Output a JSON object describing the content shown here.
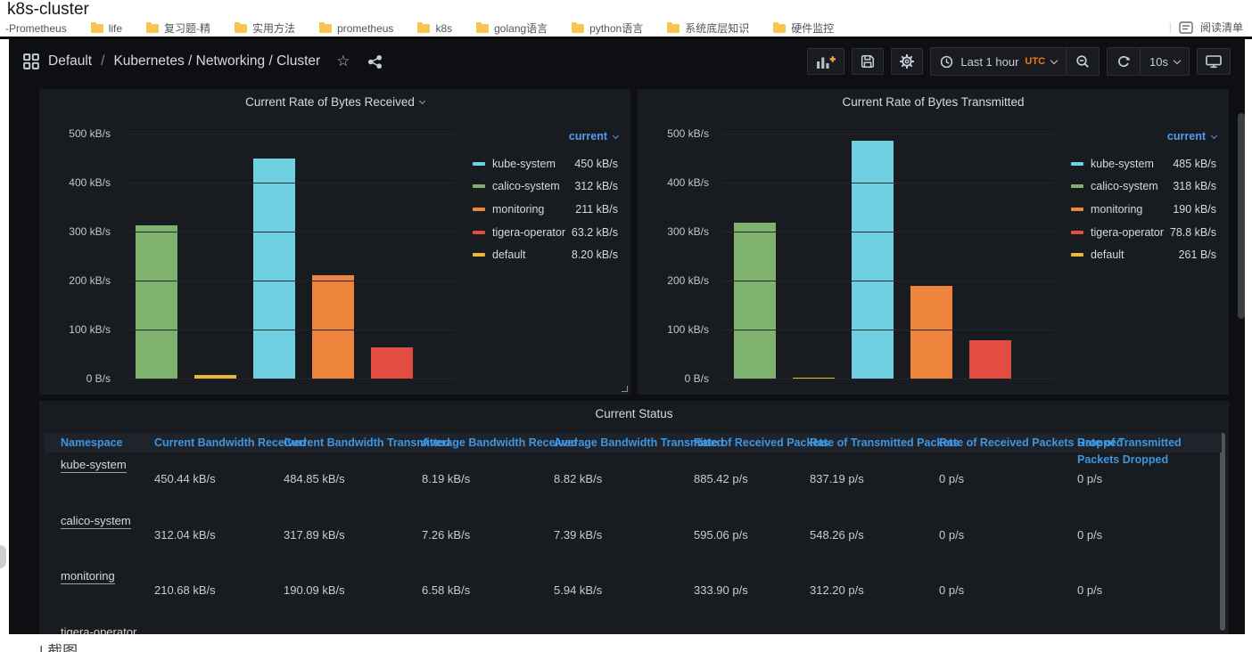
{
  "browser": {
    "page_title": "k8s-cluster",
    "bookmarks": [
      {
        "label": "-Prometheus",
        "folder": false
      },
      {
        "label": "life",
        "folder": true
      },
      {
        "label": "复习题-精",
        "folder": true
      },
      {
        "label": "实用方法",
        "folder": true
      },
      {
        "label": "prometheus",
        "folder": true
      },
      {
        "label": "k8s",
        "folder": true
      },
      {
        "label": "golang语言",
        "folder": true
      },
      {
        "label": "python语言",
        "folder": true
      },
      {
        "label": "系统底层知识",
        "folder": true
      },
      {
        "label": "硬件监控",
        "folder": true
      }
    ],
    "reading_list_label": "阅读清单",
    "bottom_note": "| 截图"
  },
  "nav": {
    "breadcrumb_folder": "Default",
    "breadcrumb_separator": "/",
    "breadcrumb_dashboard": "Kubernetes / Networking / Cluster",
    "star_glyph": "☆",
    "time_range": "Last 1 hour",
    "timezone": "UTC",
    "refresh_interval": "10s"
  },
  "icons": {
    "apps": "grid-2x2",
    "share": "share-alt",
    "add_panel": "bar-chart-plus",
    "save": "floppy-disk",
    "settings": "gear",
    "time_picker": "clock",
    "zoom_out": "magnifier-minus",
    "refresh": "circular-arrow",
    "cycle_view": "monitor",
    "reading_list": "list-box",
    "bookmark_folder": "folder"
  },
  "colors": {
    "kube_system": "#6ED0E0",
    "calico_system": "#7EB26D",
    "monitoring": "#EF843C",
    "tigera_operator": "#E24D42",
    "default_ns": "#EAB839",
    "legend_header_blue": "#4f9ef0",
    "table_header_blue": "#3e96e0",
    "utc_orange": "#eb7b18",
    "panel_bg": "#181b1f"
  },
  "chart_data": [
    {
      "type": "bar",
      "title": "Current Rate of Bytes Received",
      "legend_header": "current",
      "ylim_kbps": 500,
      "y_ticks": [
        "500 kB/s",
        "400 kB/s",
        "300 kB/s",
        "200 kB/s",
        "100 kB/s",
        "0 B/s"
      ],
      "grid": true,
      "legend_position": "right",
      "bar_order": [
        "calico-system",
        "default",
        "kube-system",
        "monitoring",
        "tigera-operator"
      ],
      "series": [
        {
          "name": "kube-system",
          "color": "#6ED0E0",
          "value_kbps": 450,
          "display": "450 kB/s"
        },
        {
          "name": "calico-system",
          "color": "#7EB26D",
          "value_kbps": 312,
          "display": "312 kB/s"
        },
        {
          "name": "monitoring",
          "color": "#EF843C",
          "value_kbps": 211,
          "display": "211 kB/s"
        },
        {
          "name": "tigera-operator",
          "color": "#E24D42",
          "value_kbps": 63.2,
          "display": "63.2 kB/s"
        },
        {
          "name": "default",
          "color": "#EAB839",
          "value_kbps": 8.2,
          "display": "8.20 kB/s"
        }
      ]
    },
    {
      "type": "bar",
      "title": "Current Rate of Bytes Transmitted",
      "legend_header": "current",
      "ylim_kbps": 500,
      "y_ticks": [
        "500 kB/s",
        "400 kB/s",
        "300 kB/s",
        "200 kB/s",
        "100 kB/s",
        "0 B/s"
      ],
      "grid": true,
      "legend_position": "right",
      "bar_order": [
        "calico-system",
        "default",
        "kube-system",
        "monitoring",
        "tigera-operator"
      ],
      "series": [
        {
          "name": "kube-system",
          "color": "#6ED0E0",
          "value_kbps": 485,
          "display": "485 kB/s"
        },
        {
          "name": "calico-system",
          "color": "#7EB26D",
          "value_kbps": 318,
          "display": "318 kB/s"
        },
        {
          "name": "monitoring",
          "color": "#EF843C",
          "value_kbps": 190,
          "display": "190 kB/s"
        },
        {
          "name": "tigera-operator",
          "color": "#E24D42",
          "value_kbps": 78.8,
          "display": "78.8 kB/s"
        },
        {
          "name": "default",
          "color": "#EAB839",
          "value_kbps": 0.261,
          "display": "261 B/s"
        }
      ]
    }
  ],
  "table": {
    "title": "Current Status",
    "headers": [
      "Namespace",
      "Current Bandwidth Received",
      "Current Bandwidth Transmitted",
      "Average Bandwidth Received",
      "Average Bandwidth Transmitted",
      "Rate of Received Packets",
      "Rate of Transmitted Packets",
      "Rate of Received Packets Dropped",
      "Rate of Transmitted Packets Dropped"
    ],
    "rows": [
      {
        "namespace": "kube-system",
        "values": [
          "450.44 kB/s",
          "484.85 kB/s",
          "8.19 kB/s",
          "8.82 kB/s",
          "885.42 p/s",
          "837.19 p/s",
          "0 p/s",
          "0 p/s"
        ]
      },
      {
        "namespace": "calico-system",
        "values": [
          "312.04 kB/s",
          "317.89 kB/s",
          "7.26 kB/s",
          "7.39 kB/s",
          "595.06 p/s",
          "548.26 p/s",
          "0 p/s",
          "0 p/s"
        ]
      },
      {
        "namespace": "monitoring",
        "values": [
          "210.68 kB/s",
          "190.09 kB/s",
          "6.58 kB/s",
          "5.94 kB/s",
          "333.90 p/s",
          "312.20 p/s",
          "0 p/s",
          "0 p/s"
        ]
      },
      {
        "namespace": "tigera-operator",
        "values": [
          "",
          "",
          "",
          "",
          "",
          "",
          "",
          ""
        ]
      }
    ]
  }
}
